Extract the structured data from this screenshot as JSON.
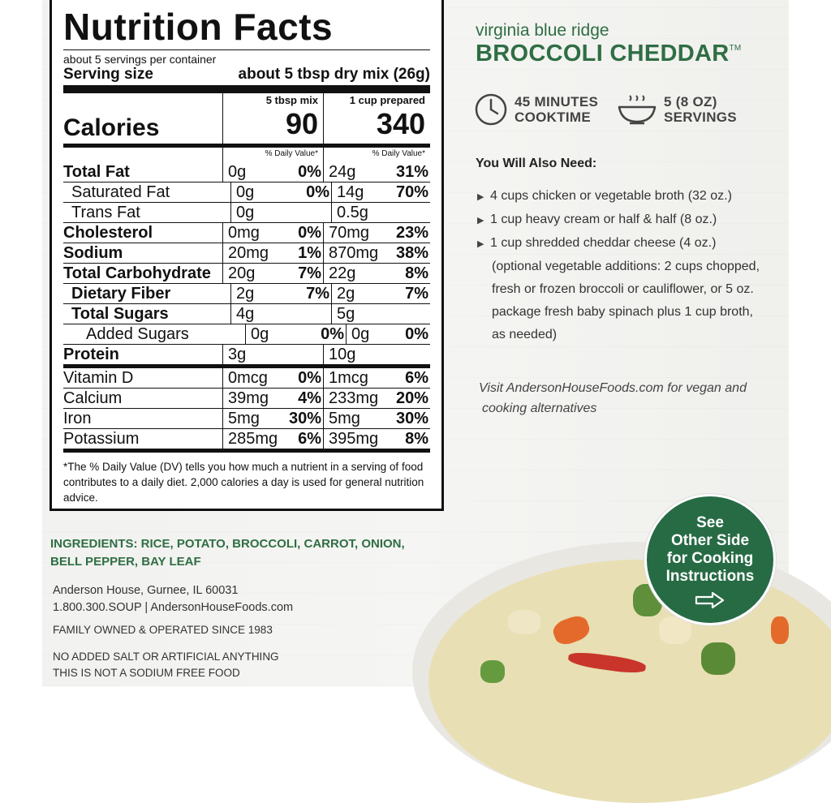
{
  "nutrition": {
    "title": "Nutrition Facts",
    "servings_per_container": "about 5 servings per container",
    "serving_size_label": "Serving size",
    "serving_size_value": "about 5 tbsp dry mix (26g)",
    "calories_label": "Calories",
    "col1_header": "5 tbsp mix",
    "col2_header": "1 cup prepared",
    "col1_calories": "90",
    "col2_calories": "340",
    "dv_header": "% Daily Value*",
    "rows": [
      {
        "name": "Total Fat",
        "a": "0g",
        "ap": "0%",
        "b": "24g",
        "bp": "31%"
      },
      {
        "name": "Saturated Fat",
        "a": "0g",
        "ap": "0%",
        "b": "14g",
        "bp": "70%"
      },
      {
        "name": "Trans Fat",
        "a": "0g",
        "ap": "",
        "b": "0.5g",
        "bp": ""
      },
      {
        "name": "Cholesterol",
        "a": "0mg",
        "ap": "0%",
        "b": "70mg",
        "bp": "23%"
      },
      {
        "name": "Sodium",
        "a": "20mg",
        "ap": "1%",
        "b": "870mg",
        "bp": "38%"
      },
      {
        "name": "Total Carbohydrate",
        "a": "20g",
        "ap": "7%",
        "b": "22g",
        "bp": "8%"
      },
      {
        "name": "Dietary Fiber",
        "a": "2g",
        "ap": "7%",
        "b": "2g",
        "bp": "7%"
      },
      {
        "name": "Total Sugars",
        "a": "4g",
        "ap": "",
        "b": "5g",
        "bp": ""
      },
      {
        "name": "Added Sugars",
        "a": "0g",
        "ap": "0%",
        "b": "0g",
        "bp": "0%"
      },
      {
        "name": "Protein",
        "a": "3g",
        "ap": "",
        "b": "10g",
        "bp": ""
      }
    ],
    "vitamins": [
      {
        "name": "Vitamin D",
        "a": "0mcg",
        "ap": "0%",
        "b": "1mcg",
        "bp": "6%"
      },
      {
        "name": "Calcium",
        "a": "39mg",
        "ap": "4%",
        "b": "233mg",
        "bp": "20%"
      },
      {
        "name": "Iron",
        "a": "5mg",
        "ap": "30%",
        "b": "5mg",
        "bp": "30%"
      },
      {
        "name": "Potassium",
        "a": "285mg",
        "ap": "6%",
        "b": "395mg",
        "bp": "8%"
      }
    ],
    "footnote": "*The % Daily Value (DV) tells you how much a nutrient in a serving of food contributes to a daily diet. 2,000 calories a day is used for general nutrition advice."
  },
  "product": {
    "brand": "virginia blue ridge",
    "name": "BROCCOLI CHEDDAR",
    "tm": "TM",
    "cooktime_line1": "45 MINUTES",
    "cooktime_line2": "COOKTIME",
    "servings_line1": "5 (8 OZ)",
    "servings_line2": "SERVINGS"
  },
  "needs": {
    "heading": "You Will Also Need:",
    "items": [
      "4 cups chicken or vegetable broth (32 oz.)",
      "1 cup heavy cream or half & half (8 oz.)",
      "1 cup shredded cheddar cheese (4 oz.)"
    ],
    "optional_lines": [
      "(optional vegetable additions: 2 cups chopped,",
      "fresh or frozen broccoli or cauliflower, or 5 oz.",
      "package fresh baby spinach plus 1 cup broth,",
      "as needed)"
    ]
  },
  "visit": {
    "line1": "Visit AndersonHouseFoods.com for vegan and",
    "line2": "cooking alternatives"
  },
  "ingredients": {
    "line1": "INGREDIENTS: RICE, POTATO, BROCCOLI, CARROT, ONION,",
    "line2": "BELL PEPPER, BAY LEAF"
  },
  "company": {
    "address": "Anderson House,  Gurnee, IL 60031",
    "contact": "1.800.300.SOUP | AndersonHouseFoods.com",
    "family": "FAMILY OWNED & OPERATED SINCE 1983",
    "no_salt": "NO ADDED SALT OR ARTIFICIAL ANYTHING",
    "not_sodium_free": "THIS IS NOT A SODIUM FREE FOOD"
  },
  "badge": {
    "lines": [
      "See",
      "Other Side",
      "for Cooking",
      "Instructions"
    ]
  },
  "colors": {
    "brand_green": "#2f6e44",
    "badge_green": "#276b45"
  },
  "icons": {
    "cooktime": "clock-icon",
    "servings": "soup-bowl-icon",
    "list_bullet": "triangle-arrow-icon",
    "badge_arrow": "right-arrow-icon"
  }
}
